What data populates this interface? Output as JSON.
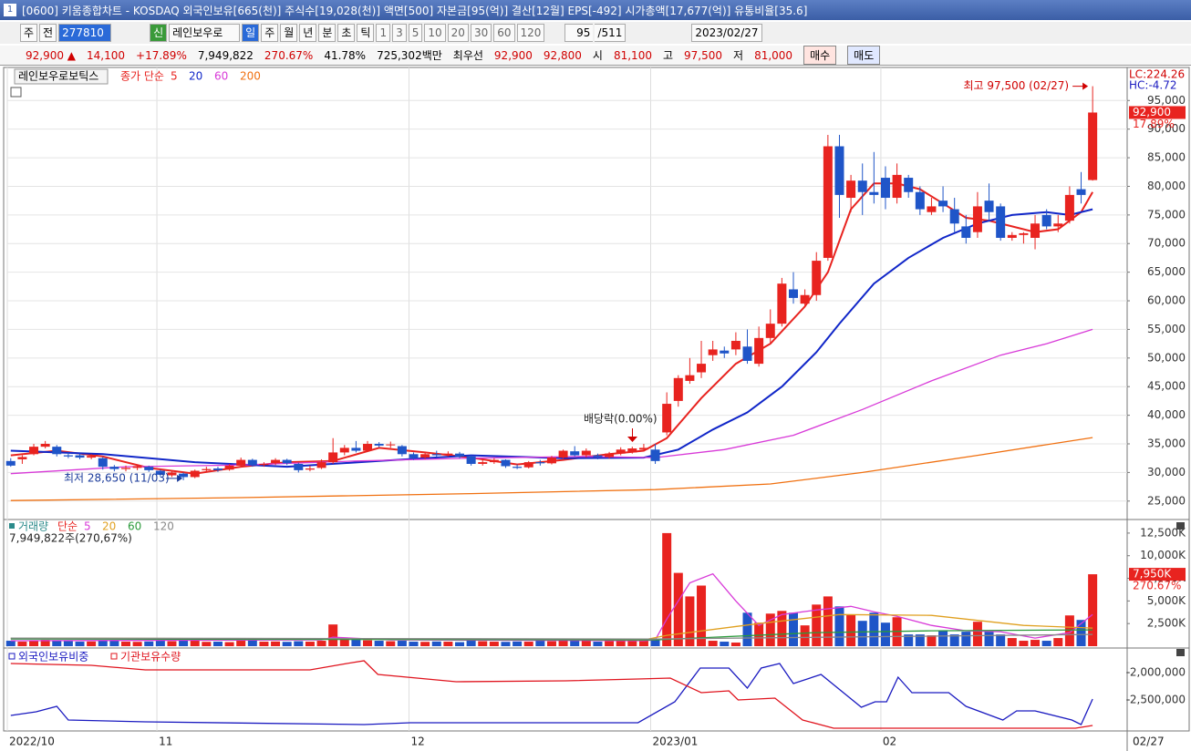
{
  "window": {
    "icon": "1",
    "title": "[0600] 키움종합차트 - KOSDAQ 외국인보유[665(천)] 주식수[19,028(천)] 액면[500] 자본금[95(억)] 결산[12월] EPS[-492] 시가총액[17,677(억)] 유통비율[35.6]"
  },
  "toolbar": {
    "mode1": "주",
    "mode2": "전",
    "code": "277810",
    "badge": "신",
    "stock_name": "레인보우로",
    "periods": [
      "일",
      "주",
      "월",
      "년",
      "분",
      "초",
      "틱"
    ],
    "intervals": [
      "1",
      "3",
      "5",
      "10",
      "20",
      "30",
      "60",
      "120"
    ],
    "count": "95",
    "total": "/511",
    "date": "2023/02/27"
  },
  "info": [
    {
      "text": "92,900 ▲",
      "color": "#d00000"
    },
    {
      "text": "14,100",
      "color": "#d00000"
    },
    {
      "text": "+17.89%",
      "color": "#d00000"
    },
    {
      "text": "7,949,822",
      "color": "#000000"
    },
    {
      "text": "270.67%",
      "color": "#d00000"
    },
    {
      "text": "41.78%",
      "color": "#000000"
    },
    {
      "text": "725,302백만",
      "color": "#000000"
    },
    {
      "text": "최우선",
      "color": "#000000"
    },
    {
      "text": "92,900",
      "color": "#d00000"
    },
    {
      "text": "92,800",
      "color": "#d00000"
    },
    {
      "text": "시",
      "color": "#000000"
    },
    {
      "text": "81,100",
      "color": "#d00000"
    },
    {
      "text": "고",
      "color": "#000000"
    },
    {
      "text": "97,500",
      "color": "#d00000"
    },
    {
      "text": "저",
      "color": "#000000"
    },
    {
      "text": "81,000",
      "color": "#d00000"
    }
  ],
  "buttons": [
    "매수",
    "매도"
  ],
  "chart_data": [
    {
      "type": "candlestick",
      "stock": "레인보우로보틱스",
      "legend_title": "종가 단순",
      "up_color": "#e8231f",
      "down_color": "#1f55c8",
      "grid": true,
      "xlim": [
        -0.3,
        97
      ],
      "ylim": [
        22100,
        100300
      ],
      "yticks": [
        {
          "value": 25000,
          "label": "25,000"
        },
        {
          "value": 30000,
          "label": "30,000"
        },
        {
          "value": 35000,
          "label": "35,000"
        },
        {
          "value": 40000,
          "label": "40,000"
        },
        {
          "value": 45000,
          "label": "45,000"
        },
        {
          "value": 50000,
          "label": "50,000"
        },
        {
          "value": 55000,
          "label": "55,000"
        },
        {
          "value": 60000,
          "label": "60,000"
        },
        {
          "value": 65000,
          "label": "65,000"
        },
        {
          "value": 70000,
          "label": "70,000"
        },
        {
          "value": 75000,
          "label": "75,000"
        },
        {
          "value": 80000,
          "label": "80,000"
        },
        {
          "value": 85000,
          "label": "85,000"
        },
        {
          "value": 90000,
          "label": "90,000"
        },
        {
          "value": 95000,
          "label": "95,000"
        }
      ],
      "open": [
        32000,
        32300,
        33200,
        34500,
        34500,
        33000,
        33000,
        32600,
        32500,
        31000,
        30600,
        30800,
        31000,
        30300,
        29500,
        29800,
        29200,
        30400,
        30700,
        30500,
        31200,
        32200,
        31300,
        31600,
        32200,
        31500,
        30500,
        30800,
        31800,
        33500,
        34300,
        33800,
        35000,
        34800,
        34600,
        33200,
        32600,
        33200,
        33000,
        33300,
        32800,
        31500,
        31800,
        32200,
        31000,
        30900,
        31800,
        31600,
        32600,
        33700,
        33000,
        33000,
        32700,
        33300,
        33500,
        34000,
        34000,
        37000,
        42500,
        46000,
        47500,
        50500,
        51300,
        51500,
        52000,
        49000,
        53500,
        56000,
        62000,
        59500,
        61000,
        67500,
        87000,
        78000,
        81000,
        79000,
        81500,
        78000,
        81500,
        79000,
        75500,
        77500,
        76000,
        73000,
        72000,
        77500,
        76500,
        71000,
        71500,
        71000,
        75000,
        73000,
        74000,
        79500,
        81100
      ],
      "close": [
        31200,
        32700,
        34500,
        35000,
        33200,
        32800,
        32600,
        32900,
        31000,
        30600,
        30800,
        31100,
        30400,
        29600,
        30000,
        29200,
        30300,
        30600,
        30400,
        31200,
        32200,
        31300,
        31500,
        32200,
        31600,
        30400,
        30700,
        31800,
        33500,
        34300,
        33800,
        35000,
        34700,
        34900,
        33200,
        32500,
        33200,
        33000,
        33300,
        32800,
        31500,
        31800,
        32200,
        31100,
        30800,
        31800,
        31600,
        32600,
        33800,
        33000,
        33800,
        32700,
        33300,
        34000,
        34200,
        34300,
        32000,
        42000,
        46500,
        47000,
        49000,
        51500,
        50800,
        53000,
        49500,
        53500,
        56000,
        63000,
        60500,
        61000,
        67000,
        87000,
        78500,
        81000,
        79000,
        78500,
        78000,
        82000,
        79000,
        76000,
        76500,
        76500,
        73500,
        71000,
        76500,
        75500,
        71000,
        71500,
        71800,
        73500,
        73000,
        73500,
        78500,
        78500,
        92900
      ],
      "high": [
        32500,
        33000,
        35000,
        35500,
        34800,
        33500,
        33300,
        33200,
        32700,
        31300,
        31200,
        31400,
        31200,
        30500,
        30300,
        30000,
        30500,
        31000,
        31000,
        31500,
        32600,
        32400,
        31800,
        32500,
        32400,
        31700,
        31200,
        32300,
        36000,
        34800,
        35500,
        35500,
        35300,
        35400,
        34800,
        33500,
        33600,
        33800,
        33700,
        33600,
        33000,
        32200,
        32500,
        32300,
        31400,
        32000,
        32200,
        32900,
        34000,
        34600,
        34200,
        33300,
        33600,
        34400,
        34500,
        35000,
        35000,
        44000,
        47000,
        50000,
        53000,
        53000,
        52000,
        54500,
        55000,
        55500,
        58500,
        64000,
        65000,
        62000,
        68500,
        89000,
        89000,
        82000,
        84000,
        86000,
        83500,
        84000,
        82000,
        80000,
        78000,
        80000,
        78000,
        75000,
        79000,
        80500,
        77000,
        72000,
        72000,
        75000,
        76000,
        75000,
        80000,
        82500,
        97500
      ],
      "low": [
        31000,
        31500,
        33000,
        34200,
        32800,
        32500,
        32300,
        32300,
        30500,
        30200,
        30200,
        30400,
        30100,
        29300,
        29200,
        28650,
        29000,
        30100,
        30100,
        30300,
        31000,
        31000,
        31000,
        31300,
        31300,
        30000,
        30200,
        30600,
        31500,
        33000,
        33500,
        33600,
        34400,
        34300,
        32800,
        32200,
        32300,
        32700,
        32800,
        32500,
        31200,
        31200,
        31500,
        30800,
        30600,
        30700,
        31200,
        31400,
        32400,
        32800,
        32600,
        32300,
        32400,
        33000,
        33300,
        33700,
        31500,
        36500,
        41500,
        45500,
        46500,
        49500,
        50000,
        50500,
        49000,
        48500,
        52500,
        55500,
        59500,
        59000,
        60000,
        67000,
        74500,
        75500,
        75000,
        77000,
        76000,
        77000,
        78000,
        75000,
        75000,
        75500,
        72000,
        70000,
        71000,
        74000,
        70500,
        70500,
        70000,
        69000,
        72500,
        72000,
        73500,
        77000,
        81000
      ],
      "series": [
        {
          "name": "5",
          "color": "#e8231f",
          "x": [
            0,
            4,
            8,
            12,
            16,
            20,
            24,
            28,
            32,
            36,
            40,
            44,
            48,
            52,
            55,
            57,
            60,
            63,
            66,
            69,
            71,
            73,
            75,
            77,
            79,
            81,
            83,
            85,
            87,
            89,
            91,
            93,
            94
          ],
          "values": [
            33000,
            33800,
            32800,
            30800,
            29800,
            31000,
            31800,
            32000,
            34300,
            33500,
            32600,
            31400,
            32200,
            33200,
            33800,
            36000,
            43000,
            49000,
            52500,
            59000,
            65000,
            76000,
            80500,
            80500,
            79500,
            77000,
            74500,
            74000,
            73000,
            72000,
            72500,
            75500,
            79000
          ]
        },
        {
          "name": "20",
          "color": "#1026c8",
          "x": [
            0,
            8,
            16,
            24,
            32,
            40,
            48,
            55,
            58,
            61,
            64,
            67,
            70,
            72,
            75,
            78,
            81,
            84,
            87,
            90,
            92,
            94
          ],
          "values": [
            33800,
            33200,
            31800,
            31000,
            32000,
            33000,
            32500,
            32600,
            34000,
            37500,
            40500,
            45000,
            51000,
            56000,
            63000,
            67500,
            71000,
            73500,
            75000,
            75500,
            75000,
            76000
          ]
        },
        {
          "name": "60",
          "color": "#d83ad8",
          "x": [
            0,
            10,
            20,
            30,
            40,
            50,
            56,
            62,
            68,
            74,
            80,
            86,
            90,
            94
          ],
          "values": [
            29800,
            31000,
            31300,
            32000,
            32500,
            32800,
            32600,
            34000,
            36500,
            41000,
            46000,
            50500,
            52500,
            55000
          ]
        },
        {
          "name": "200",
          "color": "#f07010",
          "x": [
            0,
            20,
            40,
            56,
            66,
            74,
            84,
            94
          ],
          "values": [
            25100,
            25600,
            26300,
            27000,
            28000,
            30000,
            33000,
            36100
          ]
        }
      ],
      "lc_label": "LC:224.26",
      "hc_label": "HC:-4.72",
      "price_label": "92,900",
      "change_label": "17.89%",
      "max_annotation": "최고 97,500 (02/27)",
      "min_annotation": "최저 28,650 (11/03)",
      "dividend_annotation": "배당락(0.00%)"
    },
    {
      "type": "bar",
      "legend_title": "거래량",
      "legend_method": "단순",
      "ylim": [
        0,
        13800
      ],
      "yticks": [
        {
          "value": 2500,
          "label": "2,500K"
        },
        {
          "value": 5000,
          "label": "5,000K"
        },
        {
          "value": 7500,
          "label": "7,500K"
        },
        {
          "value": 10000,
          "label": "10,000K"
        },
        {
          "value": 12500,
          "label": "12,500K"
        }
      ],
      "volume_note": "7,949,822주(270,67%)",
      "volume_label": "7,950K",
      "ratio_label": "270.67%",
      "values": [
        600,
        500,
        650,
        700,
        600,
        550,
        500,
        520,
        650,
        600,
        500,
        480,
        520,
        600,
        550,
        700,
        600,
        480,
        500,
        450,
        600,
        700,
        500,
        520,
        480,
        550,
        500,
        600,
        2400,
        900,
        700,
        650,
        600,
        550,
        600,
        500,
        480,
        520,
        500,
        450,
        600,
        550,
        500,
        480,
        520,
        500,
        600,
        550,
        650,
        700,
        600,
        500,
        550,
        600,
        650,
        700,
        700,
        12500,
        8100,
        5500,
        6700,
        600,
        500,
        400,
        3700,
        2600,
        3600,
        3900,
        3700,
        2300,
        4600,
        5500,
        4400,
        3500,
        2800,
        3700,
        2600,
        3200,
        1300,
        1300,
        1200,
        1700,
        1300,
        1600,
        2700,
        1600,
        1300,
        900,
        600,
        700,
        600,
        900,
        3400,
        2900,
        7950
      ],
      "series": [
        {
          "name": "5",
          "color": "#d83ad8",
          "x": [
            0,
            27,
            28,
            33,
            55,
            56,
            57,
            59,
            61,
            63,
            65,
            67,
            70,
            73,
            75,
            77,
            80,
            83,
            86,
            89,
            92,
            94
          ],
          "values": [
            600,
            700,
            1000,
            700,
            600,
            700,
            3000,
            7000,
            8000,
            5000,
            2300,
            3500,
            4000,
            4400,
            3800,
            3300,
            2300,
            1700,
            1600,
            900,
            1500,
            3500
          ]
        },
        {
          "name": "20",
          "color": "#e0a020",
          "x": [
            0,
            55,
            57,
            65,
            72,
            80,
            88,
            94
          ],
          "values": [
            900,
            700,
            1200,
            2500,
            3500,
            3400,
            2300,
            2000
          ]
        },
        {
          "name": "60",
          "color": "#2a9a3a",
          "x": [
            0,
            56,
            70,
            80,
            94
          ],
          "values": [
            800,
            700,
            1500,
            1700,
            1800
          ]
        },
        {
          "name": "120",
          "color": "#888888",
          "x": [
            0,
            56,
            94
          ],
          "values": [
            900,
            800,
            1300
          ]
        }
      ]
    },
    {
      "type": "line",
      "ylim": [
        -3033000,
        -1583000
      ],
      "yticks": [
        {
          "value": -2000000,
          "label": "-2,000,000"
        },
        {
          "value": -2500000,
          "label": "-2,500,000"
        }
      ],
      "xticks": [
        {
          "value": -0.3,
          "label": "2022/10"
        },
        {
          "value": 12.7,
          "label": "11"
        },
        {
          "value": 34.6,
          "label": "12"
        },
        {
          "value": 55.6,
          "label": "2023/01"
        },
        {
          "value": 75.6,
          "label": "02"
        }
      ],
      "last_date": "02/27",
      "series": [
        {
          "name": "외국인보유비중",
          "color": "#1a1ac0",
          "x": [
            0,
            2.2,
            4,
            5,
            11.7,
            30.7,
            34.7,
            54.5,
            57.7,
            59.9,
            62.4,
            64,
            65.2,
            66.8,
            68,
            70.4,
            73.9,
            75.1,
            76.1,
            77.1,
            78.3,
            81.5,
            83,
            86.2,
            87.4,
            89,
            92.2,
            93,
            94
          ],
          "values": [
            -2783000,
            -2717000,
            -2617000,
            -2867000,
            -2900000,
            -2950000,
            -2917000,
            -2917000,
            -2533000,
            -1917000,
            -1917000,
            -2283000,
            -1917000,
            -1833000,
            -2200000,
            -2033000,
            -2633000,
            -2533000,
            -2533000,
            -2083000,
            -2367000,
            -2367000,
            -2617000,
            -2867000,
            -2700000,
            -2700000,
            -2867000,
            -2950000,
            -2483000
          ]
        },
        {
          "name": "기관보유수량",
          "color": "#e0141e",
          "x": [
            0,
            7,
            11.7,
            26,
            29.2,
            30.7,
            31.9,
            38.7,
            48.2,
            54.5,
            57.3,
            60,
            62.4,
            63.2,
            66.4,
            68.8,
            71.5,
            72.7,
            92.5,
            94
          ],
          "values": [
            -1833000,
            -1867000,
            -1950000,
            -1950000,
            -1833000,
            -1783000,
            -2033000,
            -2167000,
            -2150000,
            -2117000,
            -2100000,
            -2367000,
            -2333000,
            -2500000,
            -2467000,
            -2867000,
            -3017000,
            -3017000,
            -3017000,
            -2967000
          ]
        }
      ]
    }
  ]
}
